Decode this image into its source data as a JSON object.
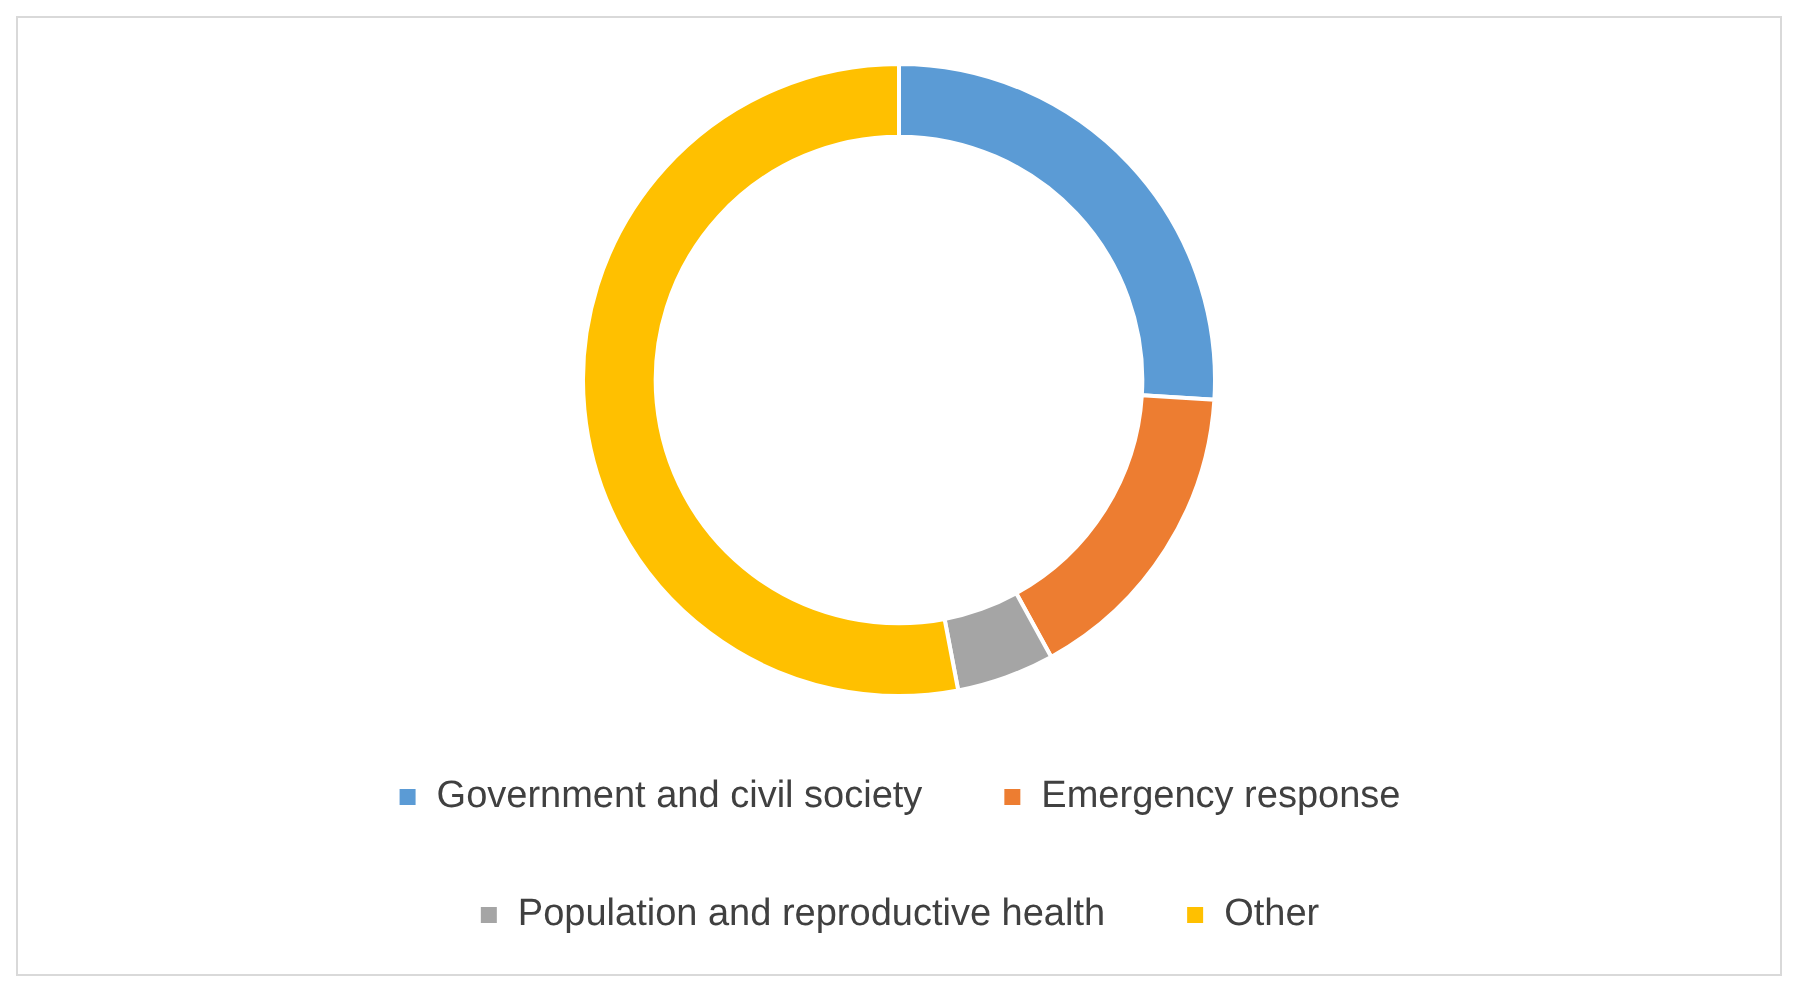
{
  "chart_data": {
    "type": "donut",
    "categories": [
      "Government and civil society",
      "Emergency response",
      "Population and reproductive health",
      "Other"
    ],
    "values": [
      26,
      16,
      5,
      53
    ],
    "colors": [
      "#5b9bd5",
      "#ed7d31",
      "#a5a5a5",
      "#ffc000"
    ],
    "legend": "bottom"
  }
}
